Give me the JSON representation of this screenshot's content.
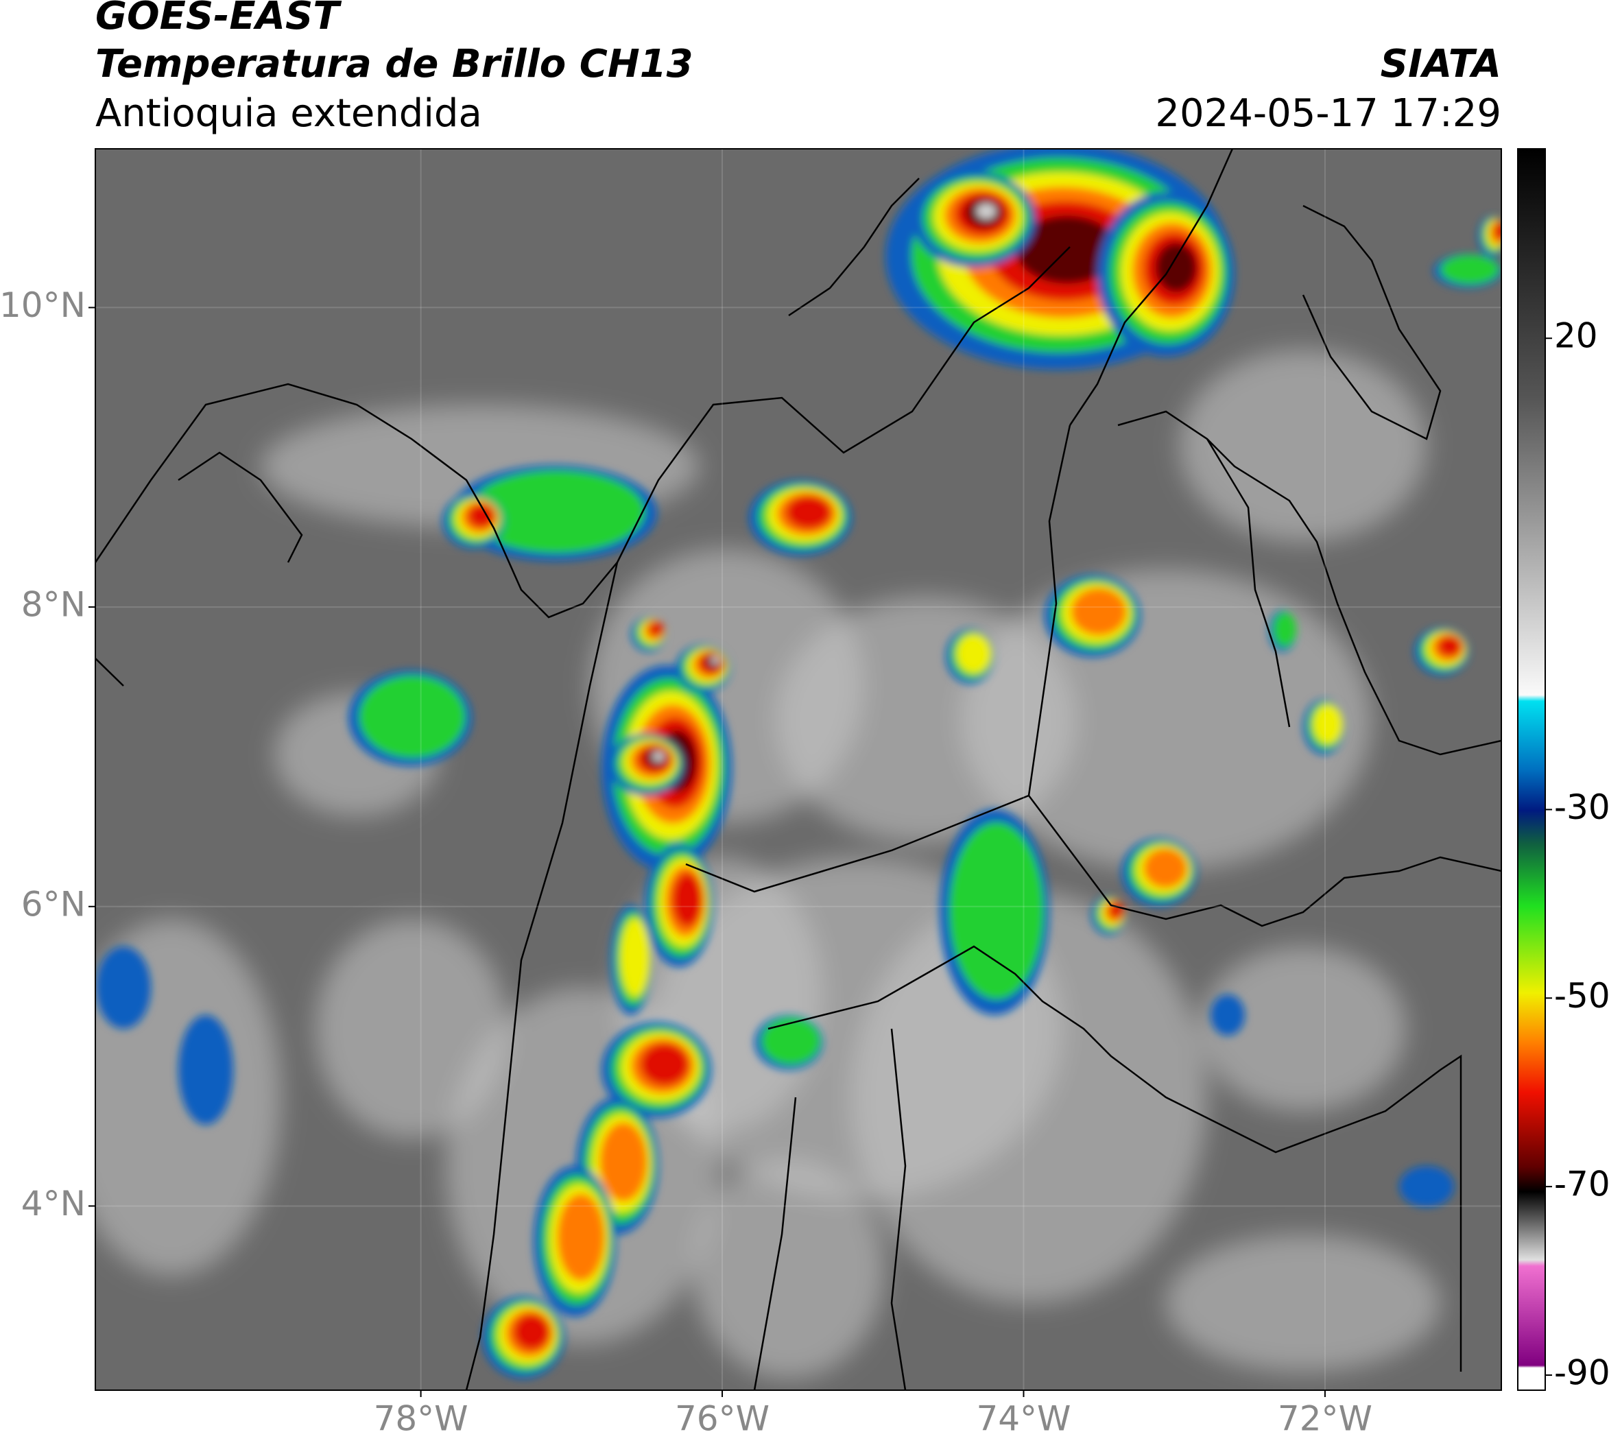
{
  "header": {
    "title": "GOES-EAST",
    "subtitle": "Temperatura de Brillo CH13",
    "region": "Antioquia extendida",
    "source": "SIATA",
    "timestamp": "2024-05-17 17:29"
  },
  "map": {
    "lonlim": [
      -80.16,
      -70.83
    ],
    "latlim": [
      2.77,
      11.06
    ],
    "lon_ticks": [
      {
        "value": -78,
        "label": "78°W"
      },
      {
        "value": -76,
        "label": "76°W"
      },
      {
        "value": -74,
        "label": "74°W"
      },
      {
        "value": -72,
        "label": "72°W"
      }
    ],
    "lat_ticks": [
      {
        "value": 10,
        "label": "10°N"
      },
      {
        "value": 8,
        "label": "8°N"
      },
      {
        "value": 6,
        "label": "6°N"
      },
      {
        "value": 4,
        "label": "4°N"
      }
    ]
  },
  "colorbar": {
    "lim": [
      -91.6,
      40.1
    ],
    "ticks": [
      20,
      -30,
      -50,
      -70,
      -90
    ]
  }
}
